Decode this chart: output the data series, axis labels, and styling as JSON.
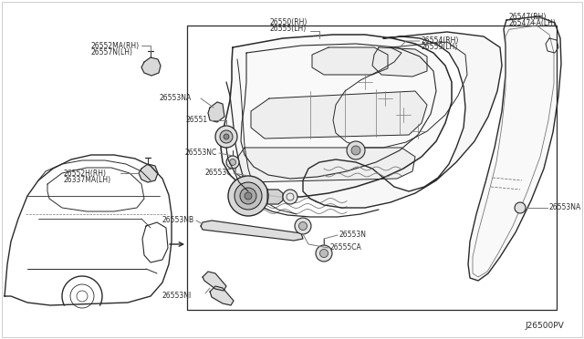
{
  "bg_color": "#ffffff",
  "lc": "#2a2a2a",
  "llc": "#777777",
  "figure_code": "J26500PV",
  "labels": {
    "26552MA_RH": "26552MA(RH)",
    "26557N_LH": "26557N(LH)",
    "26552H_RH": "26552H(RH)",
    "26337MA_LH": "26337MA(LH)",
    "26550_RH": "26550(RH)",
    "26555_LH": "26555(LH)",
    "26553NA_left": "26553NA",
    "26551": "26551",
    "26553NC": "26553NC",
    "26553C": "26553C",
    "26555CA": "26555CA",
    "26553NB": "26553NB",
    "26553N": "26553N",
    "26553NI": "26553NI",
    "26554_RH": "26554(RH)",
    "26559_LH": "26559(LH)",
    "26547_RH": "26547(RH)",
    "26547A_LH": "26547+A(LH)",
    "26553NA_right": "26553NA"
  }
}
